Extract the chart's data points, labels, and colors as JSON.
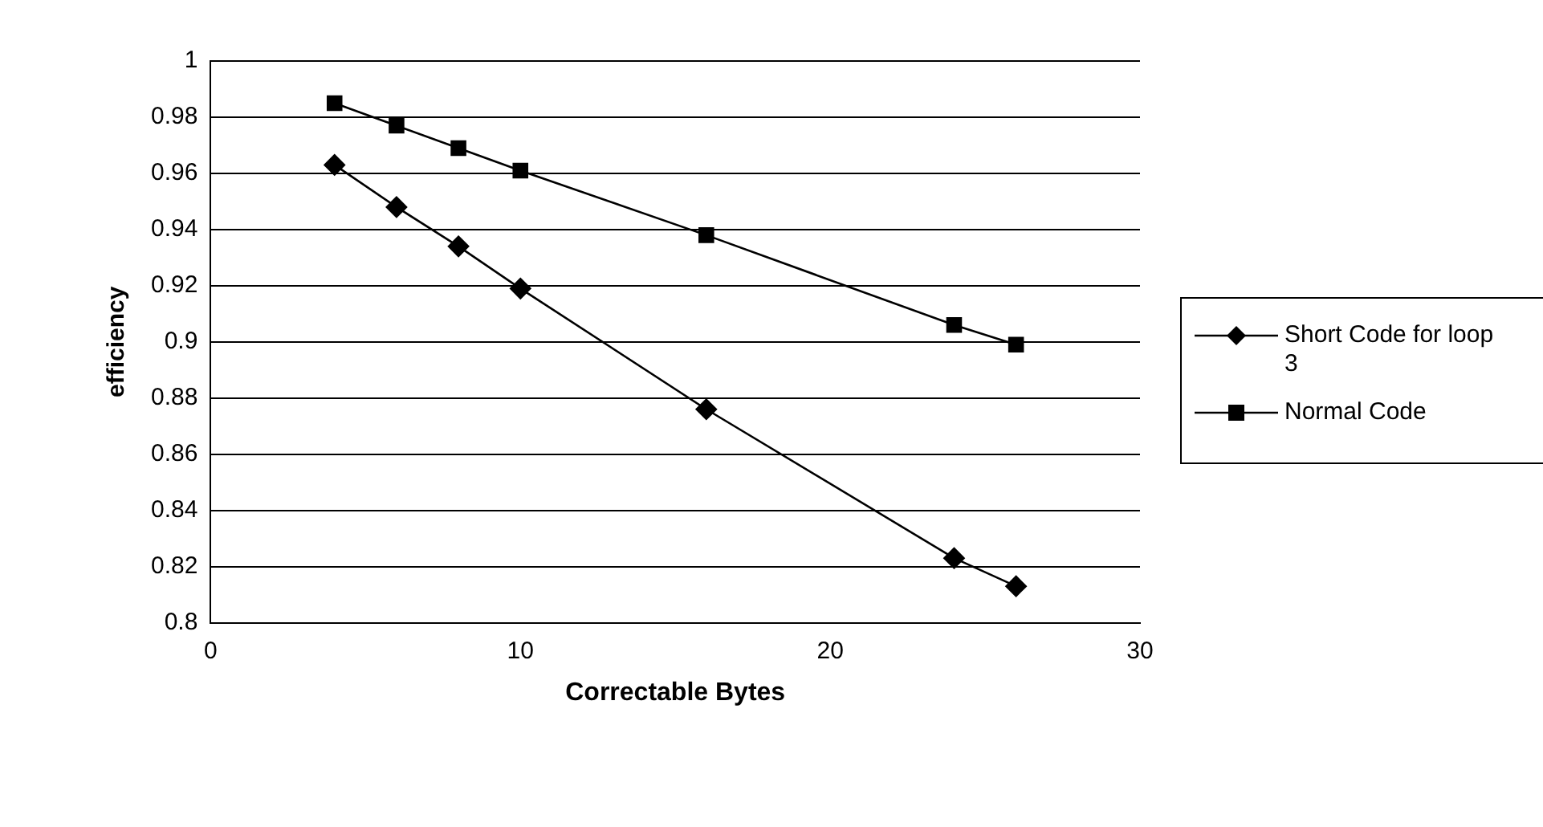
{
  "chart_data": {
    "type": "line",
    "xlabel": "Correctable Bytes",
    "ylabel": "efficiency",
    "x": [
      4,
      6,
      8,
      10,
      16,
      24,
      26
    ],
    "series": [
      {
        "name": "Short Code for loop 3",
        "color": "#000000",
        "marker": "diamond",
        "values": [
          0.963,
          0.948,
          0.934,
          0.919,
          0.876,
          0.823,
          0.813
        ]
      },
      {
        "name": "Normal Code",
        "color": "#000000",
        "marker": "square",
        "values": [
          0.985,
          0.977,
          0.969,
          0.961,
          0.938,
          0.906,
          0.899
        ]
      }
    ],
    "xlim": [
      0,
      30
    ],
    "xticks": [
      0,
      10,
      20,
      30
    ],
    "ylim": [
      0.8,
      1
    ],
    "yticks": [
      0.8,
      0.82,
      0.84,
      0.86,
      0.88,
      0.9,
      0.92,
      0.94,
      0.96,
      0.98,
      1
    ],
    "grid": "y",
    "legend": "right"
  }
}
